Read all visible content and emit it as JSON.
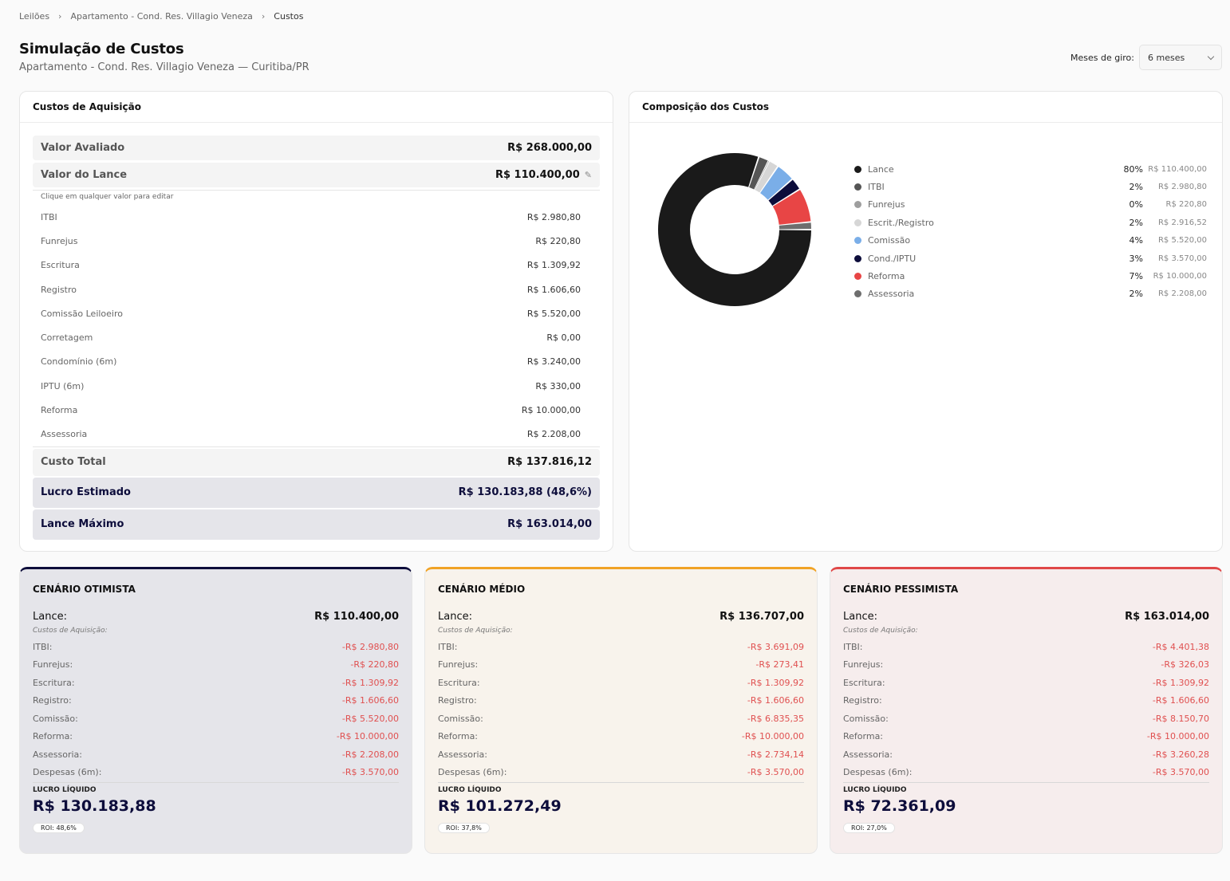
{
  "breadcrumb": [
    "Leilões",
    "Apartamento - Cond. Res. Villagio Veneza",
    "Custos"
  ],
  "page": {
    "title": "Simulação de Custos",
    "subtitle": "Apartamento - Cond. Res. Villagio Veneza — Curitiba/PR"
  },
  "giro": {
    "label": "Meses de giro:",
    "value": "6 meses"
  },
  "acquisition": {
    "title": "Custos de Aquisição",
    "valor_avaliado": {
      "label": "Valor Avaliado",
      "value": "R$ 268.000,00"
    },
    "valor_lance": {
      "label": "Valor do Lance",
      "value": "R$ 110.400,00"
    },
    "hint": "Clique em qualquer valor para editar",
    "items": [
      {
        "label": "ITBI",
        "value": "R$ 2.980,80"
      },
      {
        "label": "Funrejus",
        "value": "R$ 220,80"
      },
      {
        "label": "Escritura",
        "value": "R$ 1.309,92"
      },
      {
        "label": "Registro",
        "value": "R$ 1.606,60"
      },
      {
        "label": "Comissão Leiloeiro",
        "value": "R$ 5.520,00"
      },
      {
        "label": "Corretagem",
        "value": "R$ 0,00"
      },
      {
        "label": "Condomínio (6m)",
        "value": "R$ 3.240,00"
      },
      {
        "label": "IPTU (6m)",
        "value": "R$ 330,00"
      },
      {
        "label": "Reforma",
        "value": "R$ 10.000,00"
      },
      {
        "label": "Assessoria",
        "value": "R$ 2.208,00"
      }
    ],
    "custo_total": {
      "label": "Custo Total",
      "value": "R$ 137.816,12"
    },
    "lucro_estimado": {
      "label": "Lucro Estimado",
      "value": "R$ 130.183,88 (48,6%)"
    },
    "lance_maximo": {
      "label": "Lance Máximo",
      "value": "R$ 163.014,00"
    }
  },
  "composition": {
    "title": "Composição dos Custos",
    "chart_data": {
      "type": "pie",
      "categories": [
        "Lance",
        "ITBI",
        "Funrejus",
        "Escrit./Registro",
        "Comissão",
        "Cond./IPTU",
        "Reforma",
        "Assessoria"
      ],
      "values": [
        110400.0,
        2980.8,
        220.8,
        2916.52,
        5520.0,
        3570.0,
        10000.0,
        2208.0
      ],
      "percent_labels": [
        "80%",
        "2%",
        "0%",
        "2%",
        "4%",
        "3%",
        "7%",
        "2%"
      ],
      "value_labels": [
        "R$ 110.400,00",
        "R$ 2.980,80",
        "R$ 220,80",
        "R$ 2.916,52",
        "R$ 5.520,00",
        "R$ 3.570,00",
        "R$ 10.000,00",
        "R$ 2.208,00"
      ],
      "colors": [
        "#1a1a1a",
        "#555555",
        "#9e9e9e",
        "#d6d6d6",
        "#7aaee8",
        "#0d0d3b",
        "#e84545",
        "#6e6e6e"
      ],
      "legend_position": "right"
    }
  },
  "scenarios": [
    {
      "id": "ot",
      "title": "CENÁRIO OTIMISTA",
      "lance_label": "Lance:",
      "lance_value": "R$ 110.400,00",
      "sub": "Custos de Aquisição:",
      "items": [
        {
          "label": "ITBI:",
          "value": "-R$ 2.980,80"
        },
        {
          "label": "Funrejus:",
          "value": "-R$ 220,80"
        },
        {
          "label": "Escritura:",
          "value": "-R$ 1.309,92"
        },
        {
          "label": "Registro:",
          "value": "-R$ 1.606,60"
        },
        {
          "label": "Comissão:",
          "value": "-R$ 5.520,00"
        },
        {
          "label": "Reforma:",
          "value": "-R$ 10.000,00"
        },
        {
          "label": "Assessoria:",
          "value": "-R$ 2.208,00"
        },
        {
          "label": "Despesas (6m):",
          "value": "-R$ 3.570,00"
        }
      ],
      "lucro_label": "LUCRO LÍQUIDO",
      "lucro_value": "R$ 130.183,88",
      "roi": "ROI: 48,6%"
    },
    {
      "id": "md",
      "title": "CENÁRIO MÉDIO",
      "lance_label": "Lance:",
      "lance_value": "R$ 136.707,00",
      "sub": "Custos de Aquisição:",
      "items": [
        {
          "label": "ITBI:",
          "value": "-R$ 3.691,09"
        },
        {
          "label": "Funrejus:",
          "value": "-R$ 273,41"
        },
        {
          "label": "Escritura:",
          "value": "-R$ 1.309,92"
        },
        {
          "label": "Registro:",
          "value": "-R$ 1.606,60"
        },
        {
          "label": "Comissão:",
          "value": "-R$ 6.835,35"
        },
        {
          "label": "Reforma:",
          "value": "-R$ 10.000,00"
        },
        {
          "label": "Assessoria:",
          "value": "-R$ 2.734,14"
        },
        {
          "label": "Despesas (6m):",
          "value": "-R$ 3.570,00"
        }
      ],
      "lucro_label": "LUCRO LÍQUIDO",
      "lucro_value": "R$ 101.272,49",
      "roi": "ROI: 37,8%"
    },
    {
      "id": "pe",
      "title": "CENÁRIO PESSIMISTA",
      "lance_label": "Lance:",
      "lance_value": "R$ 163.014,00",
      "sub": "Custos de Aquisição:",
      "items": [
        {
          "label": "ITBI:",
          "value": "-R$ 4.401,38"
        },
        {
          "label": "Funrejus:",
          "value": "-R$ 326,03"
        },
        {
          "label": "Escritura:",
          "value": "-R$ 1.309,92"
        },
        {
          "label": "Registro:",
          "value": "-R$ 1.606,60"
        },
        {
          "label": "Comissão:",
          "value": "-R$ 8.150,70"
        },
        {
          "label": "Reforma:",
          "value": "-R$ 10.000,00"
        },
        {
          "label": "Assessoria:",
          "value": "-R$ 3.260,28"
        },
        {
          "label": "Despesas (6m):",
          "value": "-R$ 3.570,00"
        }
      ],
      "lucro_label": "LUCRO LÍQUIDO",
      "lucro_value": "R$ 72.361,09",
      "roi": "ROI: 27,0%"
    }
  ]
}
